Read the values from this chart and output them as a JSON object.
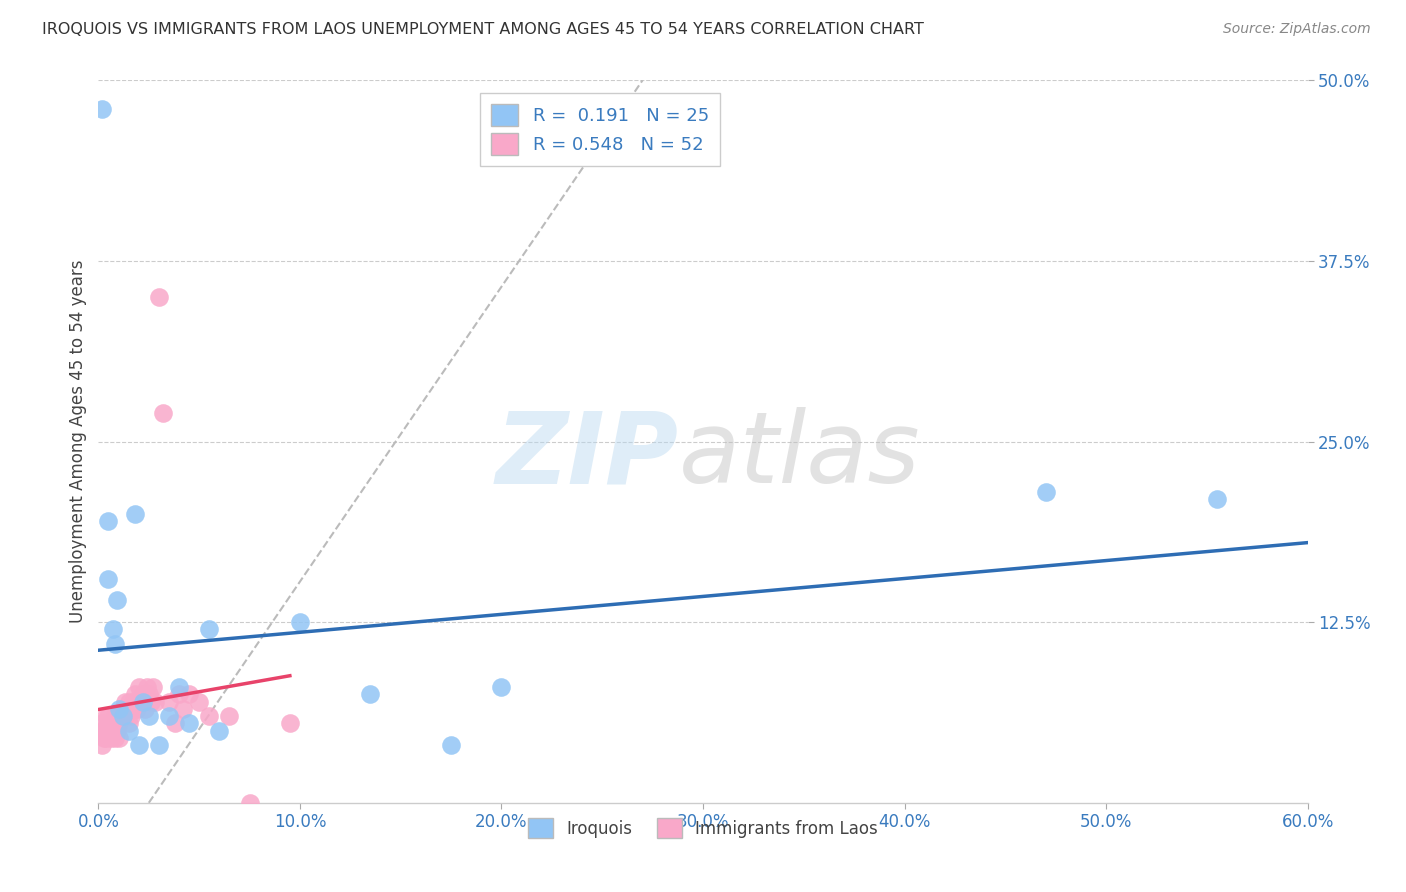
{
  "title": "IROQUOIS VS IMMIGRANTS FROM LAOS UNEMPLOYMENT AMONG AGES 45 TO 54 YEARS CORRELATION CHART",
  "source": "Source: ZipAtlas.com",
  "ylabel": "Unemployment Among Ages 45 to 54 years",
  "xlabel_ticks": [
    "0.0%",
    "10.0%",
    "20.0%",
    "30.0%",
    "40.0%",
    "50.0%",
    "60.0%"
  ],
  "xlabel_vals": [
    0.0,
    0.1,
    0.2,
    0.3,
    0.4,
    0.5,
    0.6
  ],
  "ylabel_ticks": [
    "12.5%",
    "25.0%",
    "37.5%",
    "50.0%"
  ],
  "ylabel_vals": [
    0.125,
    0.25,
    0.375,
    0.5
  ],
  "xlim": [
    0.0,
    0.6
  ],
  "ylim": [
    0.0,
    0.5
  ],
  "iroquois_R": 0.191,
  "iroquois_N": 25,
  "laos_R": 0.548,
  "laos_N": 52,
  "iroquois_color": "#92c5f5",
  "laos_color": "#f9a8c9",
  "iroquois_line_color": "#2e6db4",
  "laos_line_color": "#e8436a",
  "background_color": "#ffffff",
  "grid_color": "#cccccc",
  "iroquois_x": [
    0.002,
    0.005,
    0.005,
    0.007,
    0.008,
    0.009,
    0.01,
    0.012,
    0.015,
    0.018,
    0.02,
    0.022,
    0.025,
    0.03,
    0.035,
    0.04,
    0.045,
    0.055,
    0.06,
    0.1,
    0.135,
    0.175,
    0.2,
    0.47,
    0.555
  ],
  "iroquois_y": [
    0.48,
    0.195,
    0.155,
    0.12,
    0.11,
    0.14,
    0.065,
    0.06,
    0.05,
    0.2,
    0.04,
    0.07,
    0.06,
    0.04,
    0.06,
    0.08,
    0.055,
    0.12,
    0.05,
    0.125,
    0.075,
    0.04,
    0.08,
    0.215,
    0.21
  ],
  "laos_x": [
    0.001,
    0.002,
    0.002,
    0.003,
    0.003,
    0.004,
    0.004,
    0.005,
    0.005,
    0.006,
    0.006,
    0.007,
    0.007,
    0.008,
    0.008,
    0.009,
    0.009,
    0.01,
    0.01,
    0.011,
    0.012,
    0.013,
    0.013,
    0.014,
    0.015,
    0.015,
    0.016,
    0.017,
    0.018,
    0.018,
    0.019,
    0.02,
    0.021,
    0.022,
    0.023,
    0.024,
    0.025,
    0.026,
    0.027,
    0.028,
    0.03,
    0.032,
    0.035,
    0.038,
    0.04,
    0.042,
    0.045,
    0.05,
    0.055,
    0.065,
    0.075,
    0.095
  ],
  "laos_y": [
    0.05,
    0.055,
    0.04,
    0.05,
    0.045,
    0.06,
    0.045,
    0.055,
    0.06,
    0.045,
    0.055,
    0.05,
    0.055,
    0.045,
    0.06,
    0.05,
    0.06,
    0.045,
    0.055,
    0.06,
    0.065,
    0.07,
    0.06,
    0.065,
    0.055,
    0.07,
    0.06,
    0.07,
    0.065,
    0.075,
    0.065,
    0.08,
    0.07,
    0.075,
    0.065,
    0.08,
    0.075,
    0.07,
    0.08,
    0.07,
    0.35,
    0.27,
    0.07,
    0.055,
    0.075,
    0.065,
    0.075,
    0.07,
    0.06,
    0.06,
    0.0,
    0.055
  ],
  "dash_line_x0": 0.025,
  "dash_line_y0": 0.0,
  "dash_line_x1": 0.27,
  "dash_line_y1": 0.5
}
